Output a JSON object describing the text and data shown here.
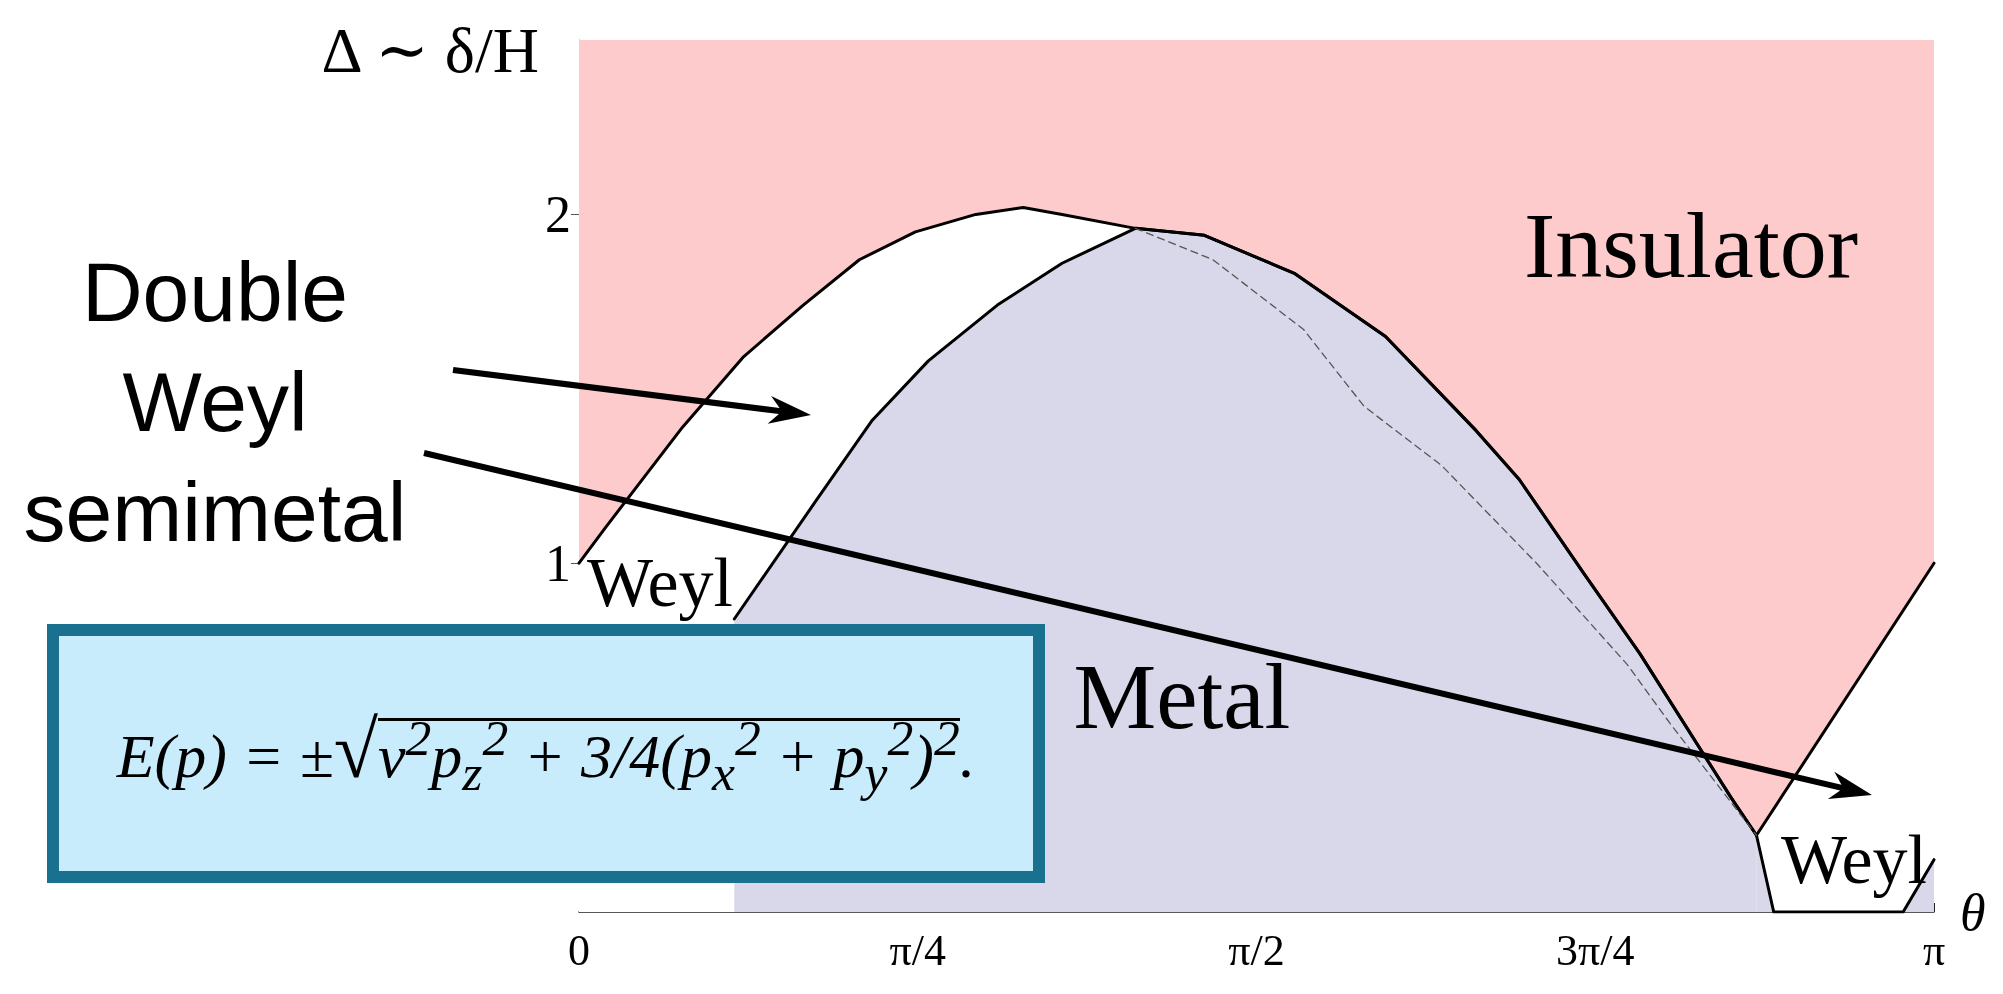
{
  "chart_data": {
    "type": "line",
    "xlabel": "θ",
    "ylabel": "Δ ∼ δ/H",
    "xlim": [
      0,
      3.1416
    ],
    "xticks": [
      0,
      {
        "value": 0.7854,
        "label": "π/4"
      },
      {
        "value": 1.5708,
        "label": "π/2"
      },
      {
        "value": 2.3562,
        "label": "3π/4"
      },
      {
        "value": 3.1416,
        "label": "π"
      }
    ],
    "ylim": [
      0,
      2.5
    ],
    "yticks": [
      1,
      2
    ],
    "grid": false,
    "marker": "none",
    "bands": [
      {
        "axis": "y",
        "from": 0,
        "to": 2.5,
        "color": "#fdcbcb"
      }
    ],
    "series": [
      {
        "type": "area",
        "color": "#ffffff",
        "x": [
          0,
          0.06,
          0.24,
          0.38,
          0.52,
          0.65,
          0.78,
          0.92,
          1.03,
          1.12,
          1.29,
          1.45,
          1.66,
          1.87,
          2.08,
          2.18,
          2.33,
          2.46,
          2.67,
          2.73
        ],
        "values": [
          1.0,
          1.1,
          1.39,
          1.59,
          1.74,
          1.87,
          1.95,
          2.0,
          2.02,
          2.0,
          1.96,
          1.94,
          1.83,
          1.65,
          1.38,
          1.24,
          0.97,
          0.74,
          0.33,
          0.22
        ]
      },
      {
        "type": "area",
        "color": "#ffffff",
        "x": [
          2.73,
          3.1416
        ],
        "values": [
          0.22,
          1.0
        ]
      },
      {
        "type": "area",
        "color": "#d9d7ea",
        "x": [
          0.36,
          0.55,
          0.68,
          0.81,
          0.97,
          1.12,
          1.29,
          1.45,
          1.66,
          1.87,
          2.08,
          2.18,
          2.33,
          2.46,
          2.67,
          2.73
        ],
        "values": [
          0.84,
          1.18,
          1.41,
          1.58,
          1.74,
          1.86,
          1.96,
          1.94,
          1.83,
          1.65,
          1.38,
          1.24,
          0.97,
          0.74,
          0.33,
          0.22
        ]
      },
      {
        "type": "area",
        "color": "#d9d7ea",
        "x": [
          2.73,
          2.77,
          3.07,
          3.1416
        ],
        "values": [
          0.22,
          0,
          0,
          0.15
        ]
      },
      {
        "type": "line",
        "color": "#555555",
        "line_style": "dashed",
        "x": [
          1.29,
          1.47,
          1.68,
          1.82,
          2.0,
          2.22,
          2.43,
          2.53,
          2.73
        ],
        "values": [
          1.96,
          1.87,
          1.67,
          1.45,
          1.28,
          1.0,
          0.71,
          0.54,
          0.22
        ]
      }
    ],
    "annotations": [
      "Insulator",
      "Metal",
      "Weyl",
      "Weyl",
      "Double Weyl semimetal",
      "E(p) = ±√v$^{2}$p$_{z}$$^{2}$ + 3/4(p$_{x}$$^{2}$ + p$_{y}$$^{2}$)$^{2}$."
    ]
  }
}
